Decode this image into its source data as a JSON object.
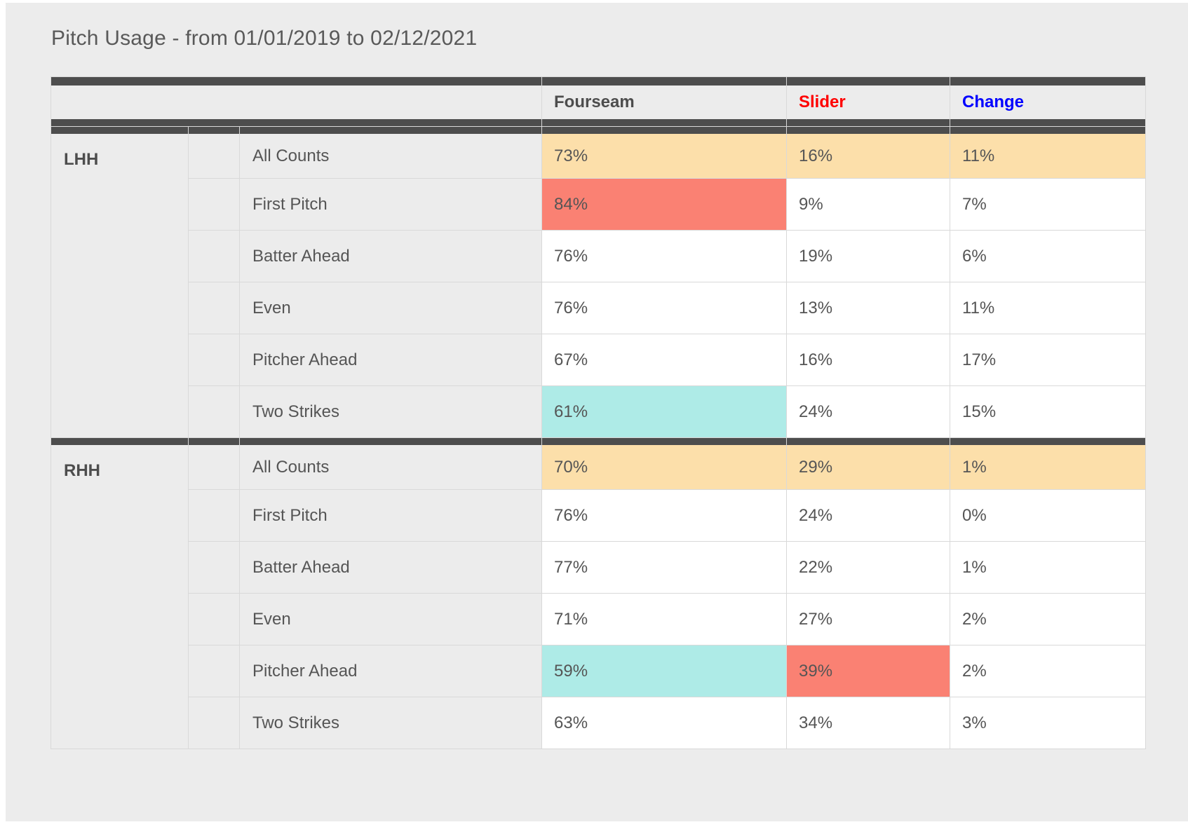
{
  "page": {
    "title": "Pitch Usage - from 01/01/2019 to 02/12/2021",
    "background_color": "#ececec"
  },
  "table": {
    "columns": [
      {
        "label": "Fourseam",
        "color": "#4d4d4d"
      },
      {
        "label": "Slider",
        "color": "#ff0000"
      },
      {
        "label": "Change",
        "color": "#0000ff"
      }
    ],
    "highlight_colors": {
      "summary": "#fcdfaa",
      "high": "#fa8173",
      "low": "#aeebe7",
      "default": "#ffffff"
    },
    "sections": [
      {
        "group": "LHH",
        "rows": [
          {
            "label": "All Counts",
            "values": [
              "73%",
              "16%",
              "11%"
            ],
            "highlights": [
              "summary",
              "summary",
              "summary"
            ]
          },
          {
            "label": "First Pitch",
            "values": [
              "84%",
              "9%",
              "7%"
            ],
            "highlights": [
              "high",
              "default",
              "default"
            ]
          },
          {
            "label": "Batter Ahead",
            "values": [
              "76%",
              "19%",
              "6%"
            ],
            "highlights": [
              "default",
              "default",
              "default"
            ]
          },
          {
            "label": "Even",
            "values": [
              "76%",
              "13%",
              "11%"
            ],
            "highlights": [
              "default",
              "default",
              "default"
            ]
          },
          {
            "label": "Pitcher Ahead",
            "values": [
              "67%",
              "16%",
              "17%"
            ],
            "highlights": [
              "default",
              "default",
              "default"
            ]
          },
          {
            "label": "Two Strikes",
            "values": [
              "61%",
              "24%",
              "15%"
            ],
            "highlights": [
              "low",
              "default",
              "default"
            ]
          }
        ]
      },
      {
        "group": "RHH",
        "rows": [
          {
            "label": "All Counts",
            "values": [
              "70%",
              "29%",
              "1%"
            ],
            "highlights": [
              "summary",
              "summary",
              "summary"
            ]
          },
          {
            "label": "First Pitch",
            "values": [
              "76%",
              "24%",
              "0%"
            ],
            "highlights": [
              "default",
              "default",
              "default"
            ]
          },
          {
            "label": "Batter Ahead",
            "values": [
              "77%",
              "22%",
              "1%"
            ],
            "highlights": [
              "default",
              "default",
              "default"
            ]
          },
          {
            "label": "Even",
            "values": [
              "71%",
              "27%",
              "2%"
            ],
            "highlights": [
              "default",
              "default",
              "default"
            ]
          },
          {
            "label": "Pitcher Ahead",
            "values": [
              "59%",
              "39%",
              "2%"
            ],
            "highlights": [
              "low",
              "high",
              "default"
            ]
          },
          {
            "label": "Two Strikes",
            "values": [
              "63%",
              "34%",
              "3%"
            ],
            "highlights": [
              "default",
              "default",
              "default"
            ]
          }
        ]
      }
    ]
  },
  "chart_data": {
    "type": "table",
    "title": "Pitch Usage - from 01/01/2019 to 02/12/2021",
    "date_range": {
      "from": "01/01/2019",
      "to": "02/12/2021"
    },
    "columns": [
      "Fourseam",
      "Slider",
      "Change"
    ],
    "column_label_colors": [
      "#4d4d4d",
      "#ff0000",
      "#0000ff"
    ],
    "units": "percent",
    "rows": [
      {
        "batter_side": "LHH",
        "count_situation": "All Counts",
        "values": [
          73,
          16,
          11
        ]
      },
      {
        "batter_side": "LHH",
        "count_situation": "First Pitch",
        "values": [
          84,
          9,
          7
        ]
      },
      {
        "batter_side": "LHH",
        "count_situation": "Batter Ahead",
        "values": [
          76,
          19,
          6
        ]
      },
      {
        "batter_side": "LHH",
        "count_situation": "Even",
        "values": [
          76,
          13,
          11
        ]
      },
      {
        "batter_side": "LHH",
        "count_situation": "Pitcher Ahead",
        "values": [
          67,
          16,
          17
        ]
      },
      {
        "batter_side": "LHH",
        "count_situation": "Two Strikes",
        "values": [
          61,
          24,
          15
        ]
      },
      {
        "batter_side": "RHH",
        "count_situation": "All Counts",
        "values": [
          70,
          29,
          1
        ]
      },
      {
        "batter_side": "RHH",
        "count_situation": "First Pitch",
        "values": [
          76,
          24,
          0
        ]
      },
      {
        "batter_side": "RHH",
        "count_situation": "Batter Ahead",
        "values": [
          77,
          22,
          1
        ]
      },
      {
        "batter_side": "RHH",
        "count_situation": "Even",
        "values": [
          71,
          27,
          2
        ]
      },
      {
        "batter_side": "RHH",
        "count_situation": "Pitcher Ahead",
        "values": [
          59,
          39,
          2
        ]
      },
      {
        "batter_side": "RHH",
        "count_situation": "Two Strikes",
        "values": [
          63,
          34,
          3
        ]
      }
    ],
    "highlighted_cells": [
      {
        "batter_side": "LHH",
        "count_situation": "All Counts",
        "columns": [
          "Fourseam",
          "Slider",
          "Change"
        ],
        "color": "#fcdfaa"
      },
      {
        "batter_side": "LHH",
        "count_situation": "First Pitch",
        "columns": [
          "Fourseam"
        ],
        "color": "#fa8173"
      },
      {
        "batter_side": "LHH",
        "count_situation": "Two Strikes",
        "columns": [
          "Fourseam"
        ],
        "color": "#aeebe7"
      },
      {
        "batter_side": "RHH",
        "count_situation": "All Counts",
        "columns": [
          "Fourseam",
          "Slider",
          "Change"
        ],
        "color": "#fcdfaa"
      },
      {
        "batter_side": "RHH",
        "count_situation": "Pitcher Ahead",
        "columns": [
          "Fourseam"
        ],
        "color": "#aeebe7"
      },
      {
        "batter_side": "RHH",
        "count_situation": "Pitcher Ahead",
        "columns": [
          "Slider"
        ],
        "color": "#fa8173"
      }
    ],
    "legend_position": "none",
    "grid": true
  }
}
